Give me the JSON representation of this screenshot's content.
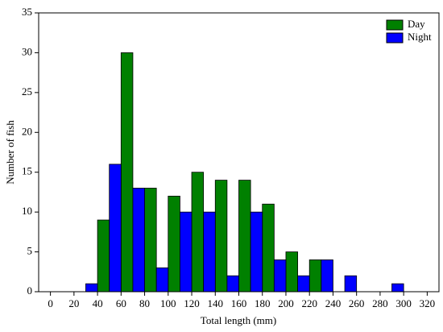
{
  "chart_data": {
    "type": "histogram",
    "xlabel": "Total length (mm)",
    "ylabel": "Number of fish",
    "bins": [
      0,
      20,
      40,
      60,
      80,
      100,
      120,
      140,
      160,
      180,
      200,
      220,
      240,
      260,
      280,
      300,
      320
    ],
    "series": [
      {
        "name": "Day",
        "color": "#008000",
        "values": [
          0,
          0,
          9,
          30,
          13,
          12,
          15,
          14,
          14,
          11,
          5,
          4,
          0,
          0,
          0,
          0
        ]
      },
      {
        "name": "Night",
        "color": "#0000ff",
        "values": [
          0,
          1,
          16,
          13,
          3,
          10,
          10,
          2,
          10,
          4,
          2,
          4,
          2,
          0,
          1,
          0
        ]
      }
    ],
    "xlim": [
      -10,
      330
    ],
    "xticks": [
      0,
      20,
      40,
      60,
      80,
      100,
      120,
      140,
      160,
      180,
      200,
      220,
      240,
      260,
      280,
      300,
      320
    ],
    "ylim": [
      0,
      35
    ],
    "yticks": [
      0,
      5,
      10,
      15,
      20,
      25,
      30,
      35
    ],
    "legend": "upper right"
  }
}
